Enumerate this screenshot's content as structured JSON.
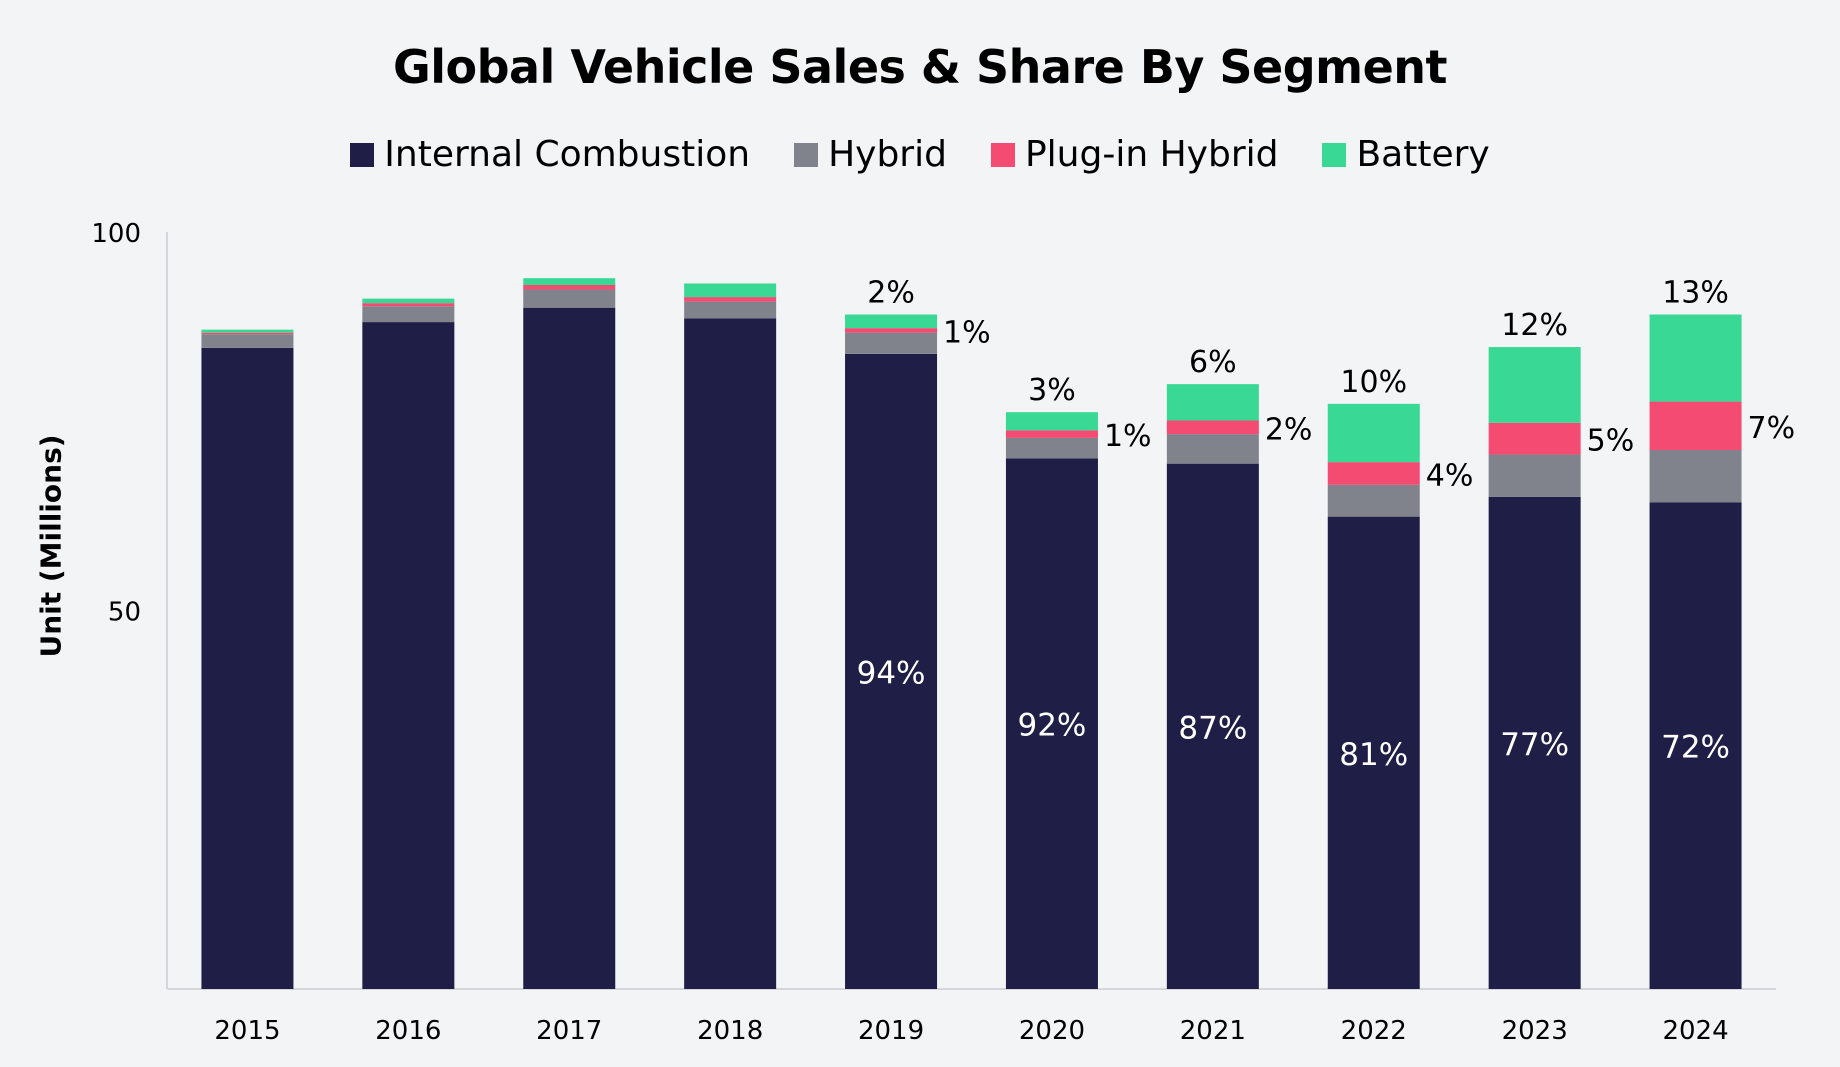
{
  "chart_data": {
    "type": "bar",
    "stacked": true,
    "title": "Global Vehicle Sales & Share By Segment",
    "xlabel": "",
    "ylabel": "Unit (Millions)",
    "ylim": [
      0,
      100
    ],
    "yticks": [
      50,
      100
    ],
    "categories": [
      "2015",
      "2016",
      "2017",
      "2018",
      "2019",
      "2020",
      "2021",
      "2022",
      "2023",
      "2024"
    ],
    "series": [
      {
        "name": "Internal Combustion",
        "color": "#1f1e47",
        "values": [
          84.7,
          88.1,
          90.0,
          88.6,
          83.9,
          70.1,
          69.4,
          62.4,
          65.0,
          64.3
        ]
      },
      {
        "name": "Hybrid",
        "color": "#80838c",
        "values": [
          1.8,
          2.1,
          2.4,
          2.2,
          2.8,
          2.7,
          3.9,
          4.2,
          5.6,
          6.9
        ]
      },
      {
        "name": "Plug-in Hybrid",
        "color": "#f44b72",
        "values": [
          0.2,
          0.4,
          0.6,
          0.6,
          0.6,
          1.0,
          1.8,
          3.0,
          4.2,
          6.4
        ]
      },
      {
        "name": "Battery",
        "color": "#39d894",
        "values": [
          0.4,
          0.6,
          0.9,
          1.8,
          1.8,
          2.4,
          4.8,
          7.7,
          10.0,
          11.5
        ]
      }
    ],
    "annotations": {
      "ice_share": [
        "",
        "",
        "",
        "",
        "94%",
        "92%",
        "87%",
        "81%",
        "77%",
        "72%"
      ],
      "phev_share": [
        "",
        "",
        "",
        "",
        "1%",
        "1%",
        "2%",
        "4%",
        "5%",
        "7%"
      ],
      "bev_share": [
        "",
        "",
        "",
        "",
        "2%",
        "3%",
        "6%",
        "10%",
        "12%",
        "13%"
      ]
    },
    "legend_position": "top-center",
    "grid": false
  }
}
